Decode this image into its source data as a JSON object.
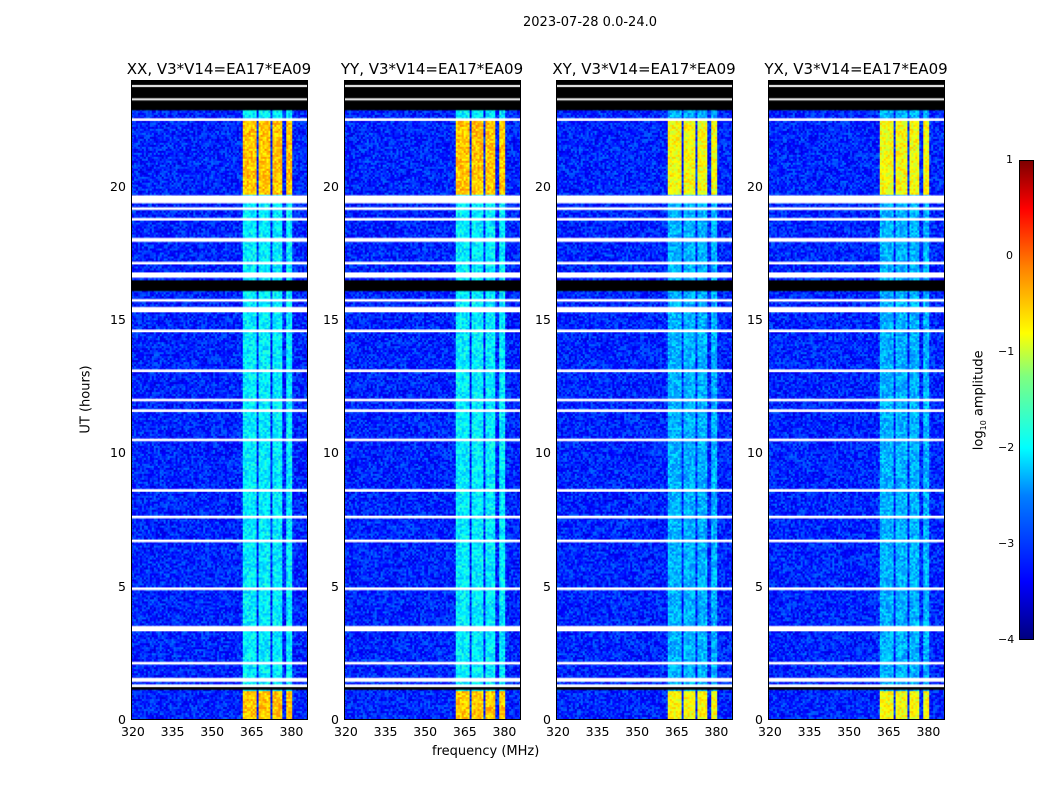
{
  "chart_data": {
    "type": "heatmap",
    "suptitle": "2023-07-28 0.0-24.0",
    "xlabel": "frequency (MHz)",
    "ylabel": "UT (hours)",
    "xlim": [
      320,
      387
    ],
    "ylim": [
      0,
      24
    ],
    "xticks": [
      "320",
      "335",
      "350",
      "365",
      "380"
    ],
    "yticks": [
      "0",
      "5",
      "10",
      "15",
      "20"
    ],
    "panels": [
      {
        "title": "XX, V3*V14=EA17*EA09"
      },
      {
        "title": "YY, V3*V14=EA17*EA09"
      },
      {
        "title": "XY, V3*V14=EA17*EA09"
      },
      {
        "title": "YX, V3*V14=EA17*EA09"
      }
    ],
    "colorbar": {
      "label": "log10 amplitude",
      "label_main": "log",
      "label_sub": "10",
      "label_tail": " amplitude",
      "range": [
        -4,
        1
      ],
      "ticks": [
        "1",
        "0",
        "−1",
        "−2",
        "−3",
        "−4"
      ],
      "colormap": "jet"
    },
    "background_level": -3.2,
    "rfi_channels_mhz": [
      [
        362,
        367
      ],
      [
        368,
        372.5
      ],
      [
        373.5,
        377.5
      ],
      [
        378.5,
        381
      ]
    ],
    "rfi_strong_hours": [
      [
        0,
        1.1
      ],
      [
        19.8,
        22.6
      ]
    ],
    "rfi_strong_level": -0.6,
    "rfi_weak_level": -2.2,
    "flagged_black_hours": [
      [
        22.9,
        24
      ],
      [
        16.1,
        16.5
      ],
      [
        1.1,
        1.2
      ]
    ],
    "flagged_white_hours": [
      [
        22.5,
        22.6
      ],
      [
        23.3,
        23.35
      ],
      [
        23.8,
        23.85
      ],
      [
        19.4,
        19.7
      ],
      [
        19.15,
        19.25
      ],
      [
        18.75,
        18.85
      ],
      [
        17.95,
        18.1
      ],
      [
        17.1,
        17.2
      ],
      [
        16.6,
        16.8
      ],
      [
        15.7,
        15.8
      ],
      [
        15.3,
        15.5
      ],
      [
        14.55,
        14.65
      ],
      [
        13.05,
        13.15
      ],
      [
        11.95,
        12.05
      ],
      [
        11.55,
        11.65
      ],
      [
        10.45,
        10.55
      ],
      [
        8.55,
        8.65
      ],
      [
        7.55,
        7.65
      ],
      [
        6.65,
        6.75
      ],
      [
        4.85,
        4.95
      ],
      [
        3.3,
        3.5
      ],
      [
        2.05,
        2.15
      ],
      [
        1.4,
        1.55
      ],
      [
        1.2,
        1.3
      ]
    ]
  }
}
